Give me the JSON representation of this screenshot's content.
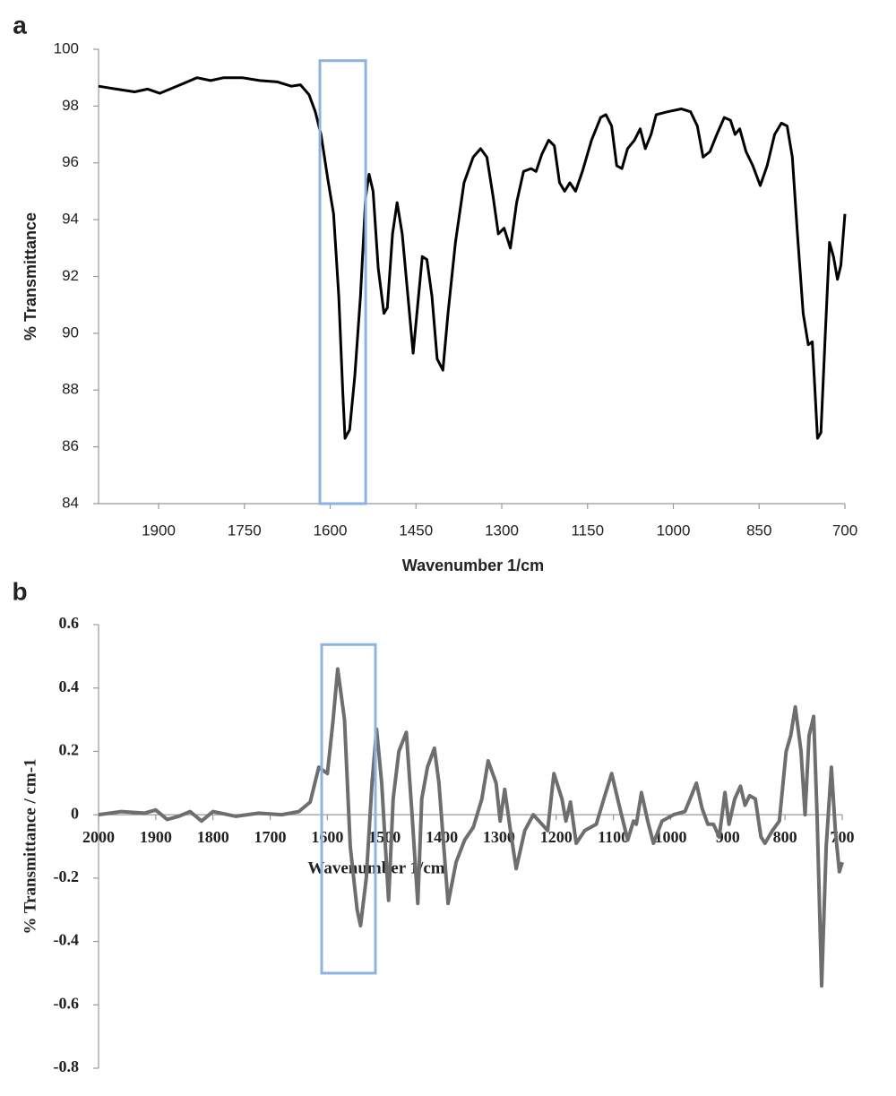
{
  "chart_data": [
    {
      "type": "line",
      "label": "a",
      "x_label": "Wavenumber 1/cm",
      "y_label": "% Transmittance",
      "color": "#000000",
      "xlim": [
        2005,
        700
      ],
      "xticks": [
        1900,
        1750,
        1600,
        1450,
        1300,
        1150,
        1000,
        850,
        700
      ],
      "ylim": [
        84,
        100
      ],
      "yticks": [
        84,
        86,
        88,
        90,
        92,
        94,
        96,
        98,
        100
      ],
      "highlight": {
        "x": [
          1618,
          1538
        ],
        "y": [
          99.6,
          84
        ],
        "color": "#8fb3e0"
      },
      "x": [
        2005,
        1974,
        1942,
        1919,
        1898,
        1880,
        1856,
        1833,
        1809,
        1786,
        1754,
        1723,
        1692,
        1668,
        1652,
        1637,
        1626,
        1616,
        1604,
        1594,
        1585,
        1578,
        1574,
        1566,
        1557,
        1547,
        1538,
        1532,
        1525,
        1516,
        1506,
        1500,
        1491,
        1483,
        1474,
        1464,
        1455,
        1447,
        1439,
        1431,
        1422,
        1413,
        1403,
        1394,
        1381,
        1366,
        1350,
        1337,
        1326,
        1315,
        1306,
        1296,
        1285,
        1274,
        1262,
        1249,
        1240,
        1230,
        1218,
        1208,
        1199,
        1190,
        1181,
        1171,
        1159,
        1143,
        1127,
        1118,
        1108,
        1099,
        1090,
        1080,
        1068,
        1058,
        1049,
        1039,
        1030,
        1010,
        986,
        970,
        958,
        948,
        936,
        924,
        911,
        900,
        892,
        884,
        873,
        861,
        848,
        836,
        823,
        811,
        801,
        792,
        783,
        773,
        764,
        757,
        753,
        748,
        742,
        735,
        727,
        720,
        713,
        707,
        700
      ],
      "values": [
        98.7,
        98.6,
        98.5,
        98.6,
        98.45,
        98.6,
        98.8,
        99.0,
        98.9,
        99.0,
        99.0,
        98.9,
        98.85,
        98.7,
        98.75,
        98.4,
        97.8,
        97.0,
        95.4,
        94.2,
        91.3,
        87.9,
        86.3,
        86.6,
        88.5,
        91.3,
        94.8,
        95.6,
        95.0,
        92.3,
        90.7,
        90.9,
        93.5,
        94.6,
        93.5,
        91.3,
        89.3,
        91.0,
        92.7,
        92.6,
        91.3,
        89.1,
        88.7,
        90.7,
        93.2,
        95.3,
        96.2,
        96.5,
        96.2,
        94.8,
        93.5,
        93.7,
        93.0,
        94.6,
        95.7,
        95.8,
        95.7,
        96.3,
        96.8,
        96.6,
        95.3,
        95.0,
        95.3,
        95.0,
        95.7,
        96.8,
        97.6,
        97.7,
        97.3,
        95.9,
        95.8,
        96.5,
        96.8,
        97.2,
        96.5,
        97.0,
        97.7,
        97.8,
        97.9,
        97.8,
        97.3,
        96.2,
        96.4,
        97.0,
        97.6,
        97.5,
        97.0,
        97.2,
        96.4,
        95.9,
        95.2,
        95.9,
        97.0,
        97.4,
        97.3,
        96.2,
        93.5,
        90.7,
        89.6,
        89.7,
        88.2,
        86.3,
        86.5,
        89.7,
        93.2,
        92.7,
        91.9,
        92.4,
        94.2
      ]
    },
    {
      "type": "line",
      "label": "b",
      "x_label": "Wavenumber 1/cm",
      "y_label": "% Transmittance / cm-1",
      "color": "#6e6e6e",
      "xlim": [
        2000,
        700
      ],
      "xticks": [
        2000,
        1900,
        1800,
        1700,
        1600,
        1500,
        1400,
        1300,
        1200,
        1100,
        1000,
        900,
        800,
        700
      ],
      "ylim": [
        -0.8,
        0.6
      ],
      "yticks": [
        -0.8,
        -0.6,
        -0.4,
        -0.2,
        0,
        0.2,
        0.4,
        0.6
      ],
      "highlight": {
        "x": [
          1610,
          1516
        ],
        "y": [
          0.537,
          -0.5
        ],
        "color": "#8fb3e0"
      },
      "x": [
        2000,
        1960,
        1920,
        1900,
        1880,
        1860,
        1840,
        1820,
        1800,
        1760,
        1720,
        1680,
        1650,
        1630,
        1615,
        1600,
        1590,
        1582,
        1570,
        1560,
        1548,
        1542,
        1532,
        1522,
        1514,
        1505,
        1493,
        1485,
        1475,
        1462,
        1452,
        1442,
        1435,
        1425,
        1413,
        1405,
        1389,
        1375,
        1360,
        1345,
        1330,
        1319,
        1305,
        1298,
        1290,
        1280,
        1270,
        1255,
        1240,
        1230,
        1215,
        1204,
        1190,
        1183,
        1175,
        1165,
        1150,
        1130,
        1115,
        1103,
        1090,
        1075,
        1065,
        1060,
        1051,
        1040,
        1030,
        1015,
        995,
        975,
        966,
        955,
        945,
        935,
        925,
        915,
        905,
        898,
        888,
        878,
        870,
        862,
        852,
        842,
        835,
        822,
        810,
        798,
        790,
        782,
        772,
        765,
        758,
        750,
        744,
        736,
        728,
        719,
        712,
        705,
        700
      ],
      "values": [
        0,
        0.01,
        0.005,
        0.015,
        -0.015,
        -0.005,
        0.01,
        -0.02,
        0.01,
        -0.005,
        0.005,
        0,
        0.01,
        0.04,
        0.15,
        0.13,
        0.3,
        0.46,
        0.3,
        -0.1,
        -0.3,
        -0.35,
        -0.2,
        0.1,
        0.27,
        0.1,
        -0.27,
        0.05,
        0.2,
        0.26,
        0.0,
        -0.28,
        0.05,
        0.15,
        0.21,
        0.1,
        -0.28,
        -0.15,
        -0.08,
        -0.04,
        0.05,
        0.17,
        0.1,
        -0.02,
        0.08,
        -0.05,
        -0.17,
        -0.05,
        0.0,
        -0.02,
        -0.05,
        0.13,
        0.05,
        -0.02,
        0.04,
        -0.09,
        -0.05,
        -0.03,
        0.06,
        0.13,
        0.03,
        -0.08,
        -0.02,
        -0.03,
        0.07,
        -0.02,
        -0.09,
        -0.02,
        0,
        0.01,
        0.05,
        0.1,
        0.02,
        -0.03,
        -0.03,
        -0.07,
        0.07,
        -0.03,
        0.05,
        0.09,
        0.03,
        0.06,
        0.05,
        -0.07,
        -0.09,
        -0.05,
        -0.02,
        0.2,
        0.25,
        0.34,
        0.2,
        0.0,
        0.25,
        0.31,
        0.0,
        -0.54,
        -0.1,
        0.15,
        -0.05,
        -0.18,
        -0.15
      ]
    }
  ]
}
